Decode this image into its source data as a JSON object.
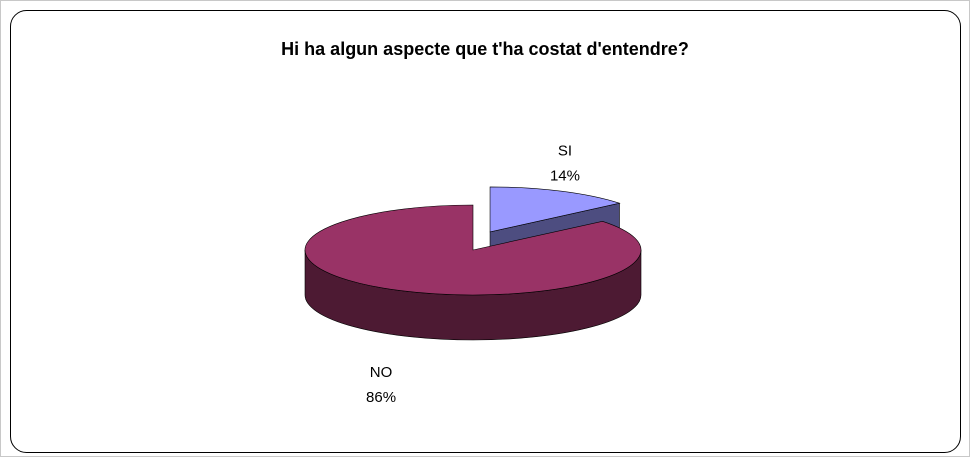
{
  "chart_data": {
    "type": "pie3d",
    "title": "Hi ha algun aspecte que t'ha costat d'entendre?",
    "categories": [
      "SI",
      "NO"
    ],
    "values": [
      14,
      86
    ],
    "value_labels": [
      "14%",
      "86%"
    ],
    "colors": [
      "#9999ff",
      "#993366"
    ],
    "explode": [
      0
    ]
  }
}
